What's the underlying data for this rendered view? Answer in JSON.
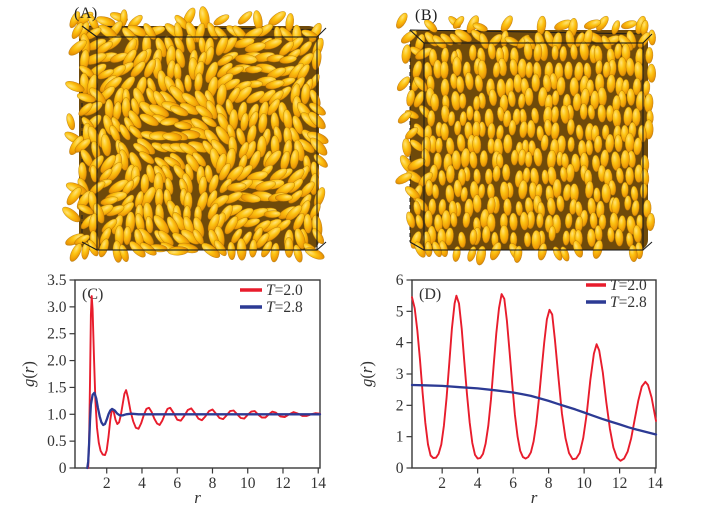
{
  "figure": {
    "background": "#ffffff"
  },
  "snapshots": {
    "a": {
      "label": "(A)",
      "alignment": "swirl",
      "seed": 42
    },
    "b": {
      "label": "(B)",
      "alignment": "layered",
      "seed": 7
    }
  },
  "particle_colors": {
    "bright": "#ffe37a",
    "mid": "#fdc513",
    "deep": "#f09d06",
    "edge": "#c67c06",
    "stroke": "#a96e06",
    "background": "#6f4a0a",
    "box_line": "#1c1c1c"
  },
  "axis_color": "#383838",
  "text_color": "#333333",
  "chart_data": [
    {
      "id": "C",
      "type": "line",
      "panel_label": "(C)",
      "title": "",
      "xlabel": "r",
      "ylabel": "g(r)",
      "xlim": [
        0.2,
        14.1
      ],
      "ylim": [
        0,
        3.5
      ],
      "xticks": [
        2,
        4,
        6,
        8,
        10,
        12,
        14
      ],
      "xtick_labels": [
        "2",
        "4",
        "6",
        "8",
        "10",
        "12",
        "14"
      ],
      "yticks": [
        0,
        0.5,
        1,
        1.5,
        2,
        2.5,
        3,
        3.5
      ],
      "ytick_labels": [
        "0",
        "0.5",
        "1.0",
        "1.5",
        "2.0",
        "2.5",
        "3.0",
        "3.5"
      ],
      "grid": false,
      "legend_position": "top-right",
      "series": [
        {
          "name": "T=2.0",
          "color": "#e81c2c",
          "points": [
            [
              0.95,
              0
            ],
            [
              1.0,
              0.5
            ],
            [
              1.05,
              1.6
            ],
            [
              1.1,
              2.85
            ],
            [
              1.15,
              3.2
            ],
            [
              1.2,
              2.95
            ],
            [
              1.28,
              2.05
            ],
            [
              1.36,
              1.25
            ],
            [
              1.45,
              0.75
            ],
            [
              1.55,
              0.47
            ],
            [
              1.65,
              0.32
            ],
            [
              1.78,
              0.25
            ],
            [
              1.9,
              0.24
            ],
            [
              2.0,
              0.33
            ],
            [
              2.1,
              0.58
            ],
            [
              2.2,
              0.9
            ],
            [
              2.3,
              1.1
            ],
            [
              2.4,
              1.04
            ],
            [
              2.5,
              0.9
            ],
            [
              2.6,
              0.82
            ],
            [
              2.7,
              0.85
            ],
            [
              2.8,
              0.98
            ],
            [
              2.9,
              1.18
            ],
            [
              3.0,
              1.38
            ],
            [
              3.1,
              1.45
            ],
            [
              3.2,
              1.32
            ],
            [
              3.35,
              1.06
            ],
            [
              3.5,
              0.87
            ],
            [
              3.65,
              0.75
            ],
            [
              3.8,
              0.73
            ],
            [
              3.95,
              0.83
            ],
            [
              4.1,
              0.98
            ],
            [
              4.25,
              1.1
            ],
            [
              4.4,
              1.12
            ],
            [
              4.55,
              1.04
            ],
            [
              4.7,
              0.92
            ],
            [
              4.85,
              0.83
            ],
            [
              5.0,
              0.8
            ],
            [
              5.15,
              0.88
            ],
            [
              5.3,
              1.0
            ],
            [
              5.45,
              1.1
            ],
            [
              5.6,
              1.12
            ],
            [
              5.8,
              1.02
            ],
            [
              6.0,
              0.9
            ],
            [
              6.2,
              0.88
            ],
            [
              6.4,
              0.97
            ],
            [
              6.6,
              1.08
            ],
            [
              6.8,
              1.11
            ],
            [
              7.0,
              1.02
            ],
            [
              7.2,
              0.92
            ],
            [
              7.4,
              0.89
            ],
            [
              7.6,
              0.96
            ],
            [
              7.8,
              1.06
            ],
            [
              8.0,
              1.09
            ],
            [
              8.2,
              1.01
            ],
            [
              8.4,
              0.93
            ],
            [
              8.6,
              0.91
            ],
            [
              8.8,
              0.98
            ],
            [
              9.0,
              1.06
            ],
            [
              9.2,
              1.07
            ],
            [
              9.4,
              1.0
            ],
            [
              9.6,
              0.93
            ],
            [
              9.8,
              0.92
            ],
            [
              10.0,
              0.99
            ],
            [
              10.2,
              1.05
            ],
            [
              10.4,
              1.06
            ],
            [
              10.6,
              0.99
            ],
            [
              10.8,
              0.94
            ],
            [
              11.0,
              0.94
            ],
            [
              11.2,
              1.0
            ],
            [
              11.4,
              1.05
            ],
            [
              11.6,
              1.03
            ],
            [
              11.85,
              0.96
            ],
            [
              12.1,
              0.95
            ],
            [
              12.35,
              1.0
            ],
            [
              12.6,
              1.04
            ],
            [
              12.85,
              1.01
            ],
            [
              13.1,
              0.97
            ],
            [
              13.35,
              0.97
            ],
            [
              13.6,
              1.0
            ],
            [
              13.85,
              1.02
            ],
            [
              14.1,
              1.01
            ]
          ]
        },
        {
          "name": "T=2.8",
          "color": "#2c3a94",
          "points": [
            [
              0.9,
              0
            ],
            [
              0.95,
              0.12
            ],
            [
              1.0,
              0.45
            ],
            [
              1.05,
              0.88
            ],
            [
              1.1,
              1.18
            ],
            [
              1.2,
              1.36
            ],
            [
              1.3,
              1.4
            ],
            [
              1.4,
              1.3
            ],
            [
              1.5,
              1.12
            ],
            [
              1.6,
              0.96
            ],
            [
              1.7,
              0.85
            ],
            [
              1.8,
              0.8
            ],
            [
              1.9,
              0.82
            ],
            [
              2.0,
              0.9
            ],
            [
              2.1,
              1.0
            ],
            [
              2.2,
              1.07
            ],
            [
              2.3,
              1.1
            ],
            [
              2.45,
              1.07
            ],
            [
              2.6,
              1.01
            ],
            [
              2.75,
              0.98
            ],
            [
              2.9,
              0.98
            ],
            [
              3.1,
              1.0
            ],
            [
              3.4,
              1.01
            ],
            [
              3.8,
              1.0
            ],
            [
              4.5,
              1.0
            ],
            [
              5.5,
              1.0
            ],
            [
              7.0,
              1.0
            ],
            [
              9.0,
              1.0
            ],
            [
              11.0,
              1.0
            ],
            [
              13.0,
              1.0
            ],
            [
              14.1,
              1.0
            ]
          ]
        }
      ]
    },
    {
      "id": "D",
      "type": "line",
      "panel_label": "(D)",
      "title": "",
      "xlabel": "r",
      "ylabel": "g(r)",
      "xlim": [
        0.3,
        14.05
      ],
      "ylim": [
        0,
        6
      ],
      "xticks": [
        2,
        4,
        6,
        8,
        10,
        12,
        14
      ],
      "xtick_labels": [
        "2",
        "4",
        "6",
        "8",
        "10",
        "12",
        "14"
      ],
      "yticks": [
        0,
        1,
        2,
        3,
        4,
        5,
        6
      ],
      "ytick_labels": [
        "0",
        "1",
        "2",
        "3",
        "4",
        "5",
        "6"
      ],
      "grid": false,
      "legend_position": "top-right",
      "series": [
        {
          "name": "T=2.0",
          "color": "#e81c2c",
          "points": [
            [
              0.3,
              5.45
            ],
            [
              0.45,
              5.1
            ],
            [
              0.6,
              4.4
            ],
            [
              0.75,
              3.45
            ],
            [
              0.9,
              2.4
            ],
            [
              1.05,
              1.45
            ],
            [
              1.2,
              0.75
            ],
            [
              1.35,
              0.4
            ],
            [
              1.5,
              0.32
            ],
            [
              1.65,
              0.33
            ],
            [
              1.8,
              0.45
            ],
            [
              1.95,
              0.75
            ],
            [
              2.1,
              1.35
            ],
            [
              2.25,
              2.25
            ],
            [
              2.4,
              3.35
            ],
            [
              2.55,
              4.45
            ],
            [
              2.7,
              5.25
            ],
            [
              2.8,
              5.5
            ],
            [
              2.95,
              5.25
            ],
            [
              3.1,
              4.45
            ],
            [
              3.25,
              3.4
            ],
            [
              3.4,
              2.35
            ],
            [
              3.55,
              1.45
            ],
            [
              3.7,
              0.8
            ],
            [
              3.85,
              0.42
            ],
            [
              4.0,
              0.3
            ],
            [
              4.15,
              0.32
            ],
            [
              4.3,
              0.45
            ],
            [
              4.45,
              0.78
            ],
            [
              4.6,
              1.35
            ],
            [
              4.75,
              2.2
            ],
            [
              4.9,
              3.25
            ],
            [
              5.05,
              4.3
            ],
            [
              5.2,
              5.1
            ],
            [
              5.35,
              5.55
            ],
            [
              5.5,
              5.4
            ],
            [
              5.65,
              4.7
            ],
            [
              5.8,
              3.7
            ],
            [
              5.95,
              2.65
            ],
            [
              6.1,
              1.7
            ],
            [
              6.25,
              1.0
            ],
            [
              6.4,
              0.55
            ],
            [
              6.55,
              0.35
            ],
            [
              6.7,
              0.3
            ],
            [
              6.85,
              0.35
            ],
            [
              7.0,
              0.5
            ],
            [
              7.15,
              0.85
            ],
            [
              7.3,
              1.4
            ],
            [
              7.45,
              2.2
            ],
            [
              7.6,
              3.1
            ],
            [
              7.75,
              4.0
            ],
            [
              7.9,
              4.75
            ],
            [
              8.05,
              5.05
            ],
            [
              8.2,
              4.9
            ],
            [
              8.35,
              4.1
            ],
            [
              8.55,
              2.9
            ],
            [
              8.75,
              1.75
            ],
            [
              8.95,
              0.95
            ],
            [
              9.15,
              0.48
            ],
            [
              9.35,
              0.28
            ],
            [
              9.55,
              0.3
            ],
            [
              9.75,
              0.48
            ],
            [
              9.95,
              0.95
            ],
            [
              10.15,
              1.75
            ],
            [
              10.35,
              2.8
            ],
            [
              10.55,
              3.65
            ],
            [
              10.7,
              3.95
            ],
            [
              10.85,
              3.75
            ],
            [
              11.05,
              3.05
            ],
            [
              11.25,
              2.1
            ],
            [
              11.45,
              1.25
            ],
            [
              11.65,
              0.65
            ],
            [
              11.85,
              0.33
            ],
            [
              12.05,
              0.23
            ],
            [
              12.25,
              0.3
            ],
            [
              12.45,
              0.52
            ],
            [
              12.65,
              0.95
            ],
            [
              12.85,
              1.55
            ],
            [
              13.05,
              2.15
            ],
            [
              13.25,
              2.6
            ],
            [
              13.45,
              2.75
            ],
            [
              13.6,
              2.65
            ],
            [
              13.8,
              2.25
            ],
            [
              14.0,
              1.65
            ],
            [
              14.05,
              1.5
            ]
          ]
        },
        {
          "name": "T=2.8",
          "color": "#2c3a94",
          "points": [
            [
              0.3,
              2.65
            ],
            [
              1.0,
              2.64
            ],
            [
              2.0,
              2.62
            ],
            [
              3.0,
              2.58
            ],
            [
              4.0,
              2.54
            ],
            [
              5.0,
              2.48
            ],
            [
              6.0,
              2.41
            ],
            [
              6.5,
              2.36
            ],
            [
              7.0,
              2.3
            ],
            [
              7.5,
              2.22
            ],
            [
              8.0,
              2.14
            ],
            [
              8.5,
              2.05
            ],
            [
              9.0,
              1.96
            ],
            [
              9.5,
              1.87
            ],
            [
              10.0,
              1.77
            ],
            [
              10.5,
              1.67
            ],
            [
              11.0,
              1.57
            ],
            [
              11.5,
              1.48
            ],
            [
              12.0,
              1.39
            ],
            [
              12.5,
              1.3
            ],
            [
              13.0,
              1.22
            ],
            [
              13.5,
              1.15
            ],
            [
              14.05,
              1.07
            ]
          ]
        }
      ]
    }
  ]
}
